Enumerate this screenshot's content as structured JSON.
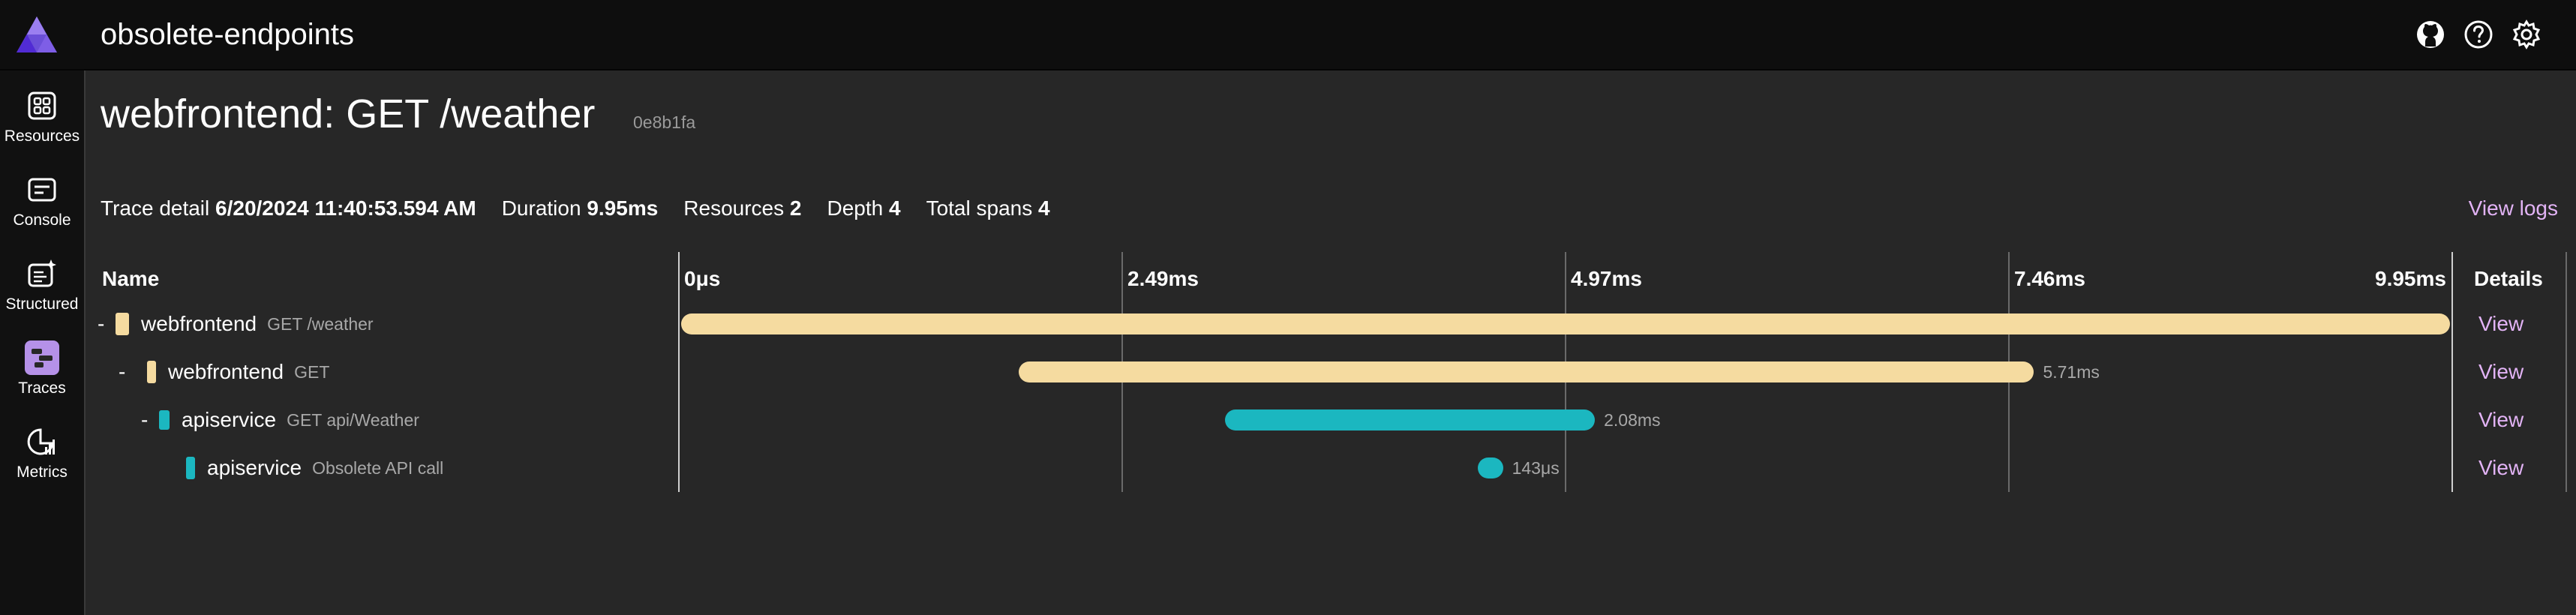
{
  "app": {
    "title": "obsolete-endpoints",
    "icons": [
      "github-icon",
      "help-icon",
      "settings-icon"
    ]
  },
  "nav": {
    "items": [
      {
        "label": "Resources",
        "icon": "resources-icon"
      },
      {
        "label": "Console",
        "icon": "console-icon"
      },
      {
        "label": "Structured",
        "icon": "structured-icon"
      },
      {
        "label": "Traces",
        "icon": "traces-icon",
        "active": true
      },
      {
        "label": "Metrics",
        "icon": "metrics-icon"
      }
    ]
  },
  "page": {
    "title": "webfrontend: GET /weather",
    "trace_id": "0e8b1fa",
    "view_logs": "View logs"
  },
  "summary": {
    "trace_detail_label": "Trace detail",
    "trace_detail_value": "6/20/2024 11:40:53.594 AM",
    "duration_label": "Duration",
    "duration_value": "9.95ms",
    "resources_label": "Resources",
    "resources_value": "2",
    "depth_label": "Depth",
    "depth_value": "4",
    "total_spans_label": "Total spans",
    "total_spans_value": "4"
  },
  "grid": {
    "name_header": "Name",
    "details_header": "Details",
    "ticks": [
      "0μs",
      "2.49ms",
      "4.97ms",
      "7.46ms",
      "9.95ms"
    ]
  },
  "colors": {
    "webfrontend": "#f5dba0",
    "apiservice": "#1bb7c0",
    "link": "#e2b3f5"
  },
  "spans": [
    {
      "toggle": "-",
      "service": "webfrontend",
      "name": "GET /weather",
      "start_ms": 0,
      "duration_ms": 9.95,
      "duration_label": "",
      "depth": 0,
      "view": "View"
    },
    {
      "toggle": "-",
      "service": "webfrontend",
      "name": "GET",
      "start_ms": 1.9,
      "duration_ms": 5.71,
      "duration_label": "5.71ms",
      "depth": 1,
      "view": "View"
    },
    {
      "toggle": "-",
      "service": "apiservice",
      "name": "GET api/Weather",
      "start_ms": 3.06,
      "duration_ms": 2.08,
      "duration_label": "2.08ms",
      "depth": 2,
      "view": "View"
    },
    {
      "toggle": "",
      "service": "apiservice",
      "name": "Obsolete API call",
      "start_ms": 4.48,
      "duration_ms": 0.143,
      "duration_label": "143μs",
      "depth": 3,
      "view": "View"
    }
  ]
}
